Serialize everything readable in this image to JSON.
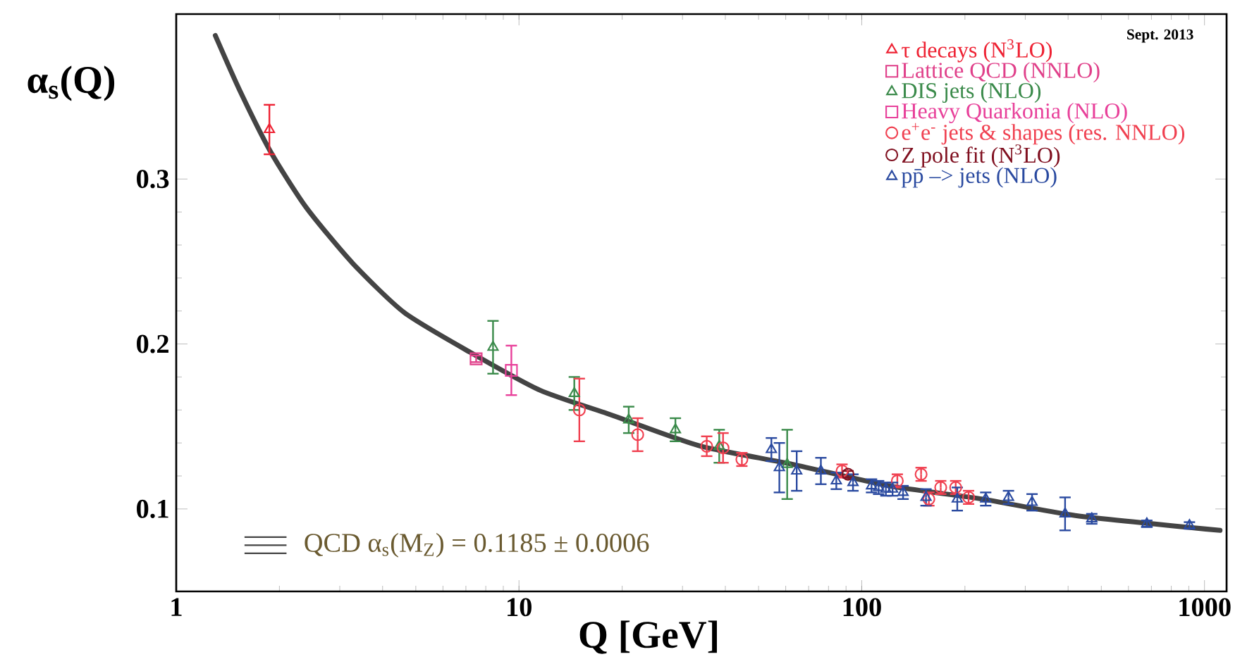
{
  "chart_data": {
    "type": "scatter",
    "xlabel": "Q [GeV]",
    "ylabel": "α$_{s}$(Q)",
    "log": "x",
    "xlim": [
      1,
      1160
    ],
    "ylim": [
      0.05,
      0.4
    ],
    "xticks": [
      1,
      10,
      100,
      1000
    ],
    "yticks": [
      0.1,
      0.2,
      0.3
    ],
    "legend": "top right",
    "grid": false,
    "annotations": [
      "Sept. 2013"
    ],
    "series": [
      {
        "name": "τ decays (N$^{3}$LO)",
        "color": "#ee2233",
        "marker": "triangle",
        "x": [
          1.87
        ],
        "values": [
          0.33
        ],
        "errors": [
          0.015
        ]
      },
      {
        "name": "Lattice QCD (NNLO)",
        "color": "#e0408a",
        "marker": "square",
        "x": [
          7.5
        ],
        "values": [
          0.191
        ],
        "errors": [
          0.002
        ]
      },
      {
        "name": "DIS jets (NLO)",
        "color": "#3a8a4a",
        "marker": "triangle",
        "x": [
          8.4,
          14.5,
          20.9,
          28.6,
          38.4,
          60.6
        ],
        "values": [
          0.198,
          0.17,
          0.154,
          0.148,
          0.138,
          0.127
        ],
        "errors": [
          0.016,
          0.01,
          0.008,
          0.007,
          0.01,
          0.021
        ]
      },
      {
        "name": "Heavy Quarkonia (NLO)",
        "color": "#e8409a",
        "marker": "square",
        "x": [
          9.5
        ],
        "values": [
          0.184
        ],
        "errors": [
          0.015
        ]
      },
      {
        "name": "e$^{+}$e$^{-}$ jets & shapes (res. NNLO)",
        "color": "#f04050",
        "marker": "circle",
        "x": [
          15.0,
          22.2,
          35.3,
          39.4,
          44.7,
          87.6,
          127,
          149,
          157,
          170,
          188,
          205
        ],
        "values": [
          0.16,
          0.145,
          0.138,
          0.137,
          0.13,
          0.123,
          0.117,
          0.121,
          0.106,
          0.113,
          0.113,
          0.107
        ],
        "errors": [
          0.019,
          0.01,
          0.006,
          0.009,
          0.004,
          0.004,
          0.004,
          0.004,
          0.004,
          0.004,
          0.004,
          0.004
        ]
      },
      {
        "name": "Z pole fit (N$^{3}$LO)",
        "color": "#801020",
        "marker": "circle",
        "x": [
          91.2
        ],
        "values": [
          0.121
        ],
        "errors": [
          0.002
        ]
      },
      {
        "name": "pp̄ –> jets (NLO)",
        "color": "#2a4aa0",
        "marker": "triangle",
        "x": [
          54.5,
          57.5,
          64.6,
          76,
          84.3,
          94.3,
          106.8,
          112,
          117.6,
          123,
          132,
          154,
          190,
          230,
          268,
          314,
          392,
          469,
          679,
          904
        ],
        "values": [
          0.136,
          0.125,
          0.123,
          0.123,
          0.117,
          0.116,
          0.114,
          0.113,
          0.112,
          0.112,
          0.11,
          0.107,
          0.106,
          0.106,
          0.107,
          0.104,
          0.097,
          0.094,
          0.091,
          0.09
        ],
        "errors": [
          0.007,
          0.015,
          0.012,
          0.008,
          0.005,
          0.005,
          0.004,
          0.004,
          0.004,
          0.004,
          0.004,
          0.005,
          0.007,
          0.004,
          0.004,
          0.005,
          0.01,
          0.003,
          0.002,
          0.002
        ]
      },
      {
        "name": "QCD α$_{s}$(M$_{Z}$) = 0.1185 ± 0.0006",
        "type": "line",
        "color": "#444444",
        "x": [
          1.3,
          1.53,
          1.88,
          2.39,
          3.27,
          4.63,
          7.2,
          11.5,
          18,
          21,
          34,
          63,
          120,
          225,
          420,
          1110
        ],
        "values": [
          0.387,
          0.354,
          0.317,
          0.283,
          0.249,
          0.219,
          0.195,
          0.172,
          0.158,
          0.153,
          0.138,
          0.127,
          0.114,
          0.106,
          0.096,
          0.087
        ]
      }
    ]
  }
}
